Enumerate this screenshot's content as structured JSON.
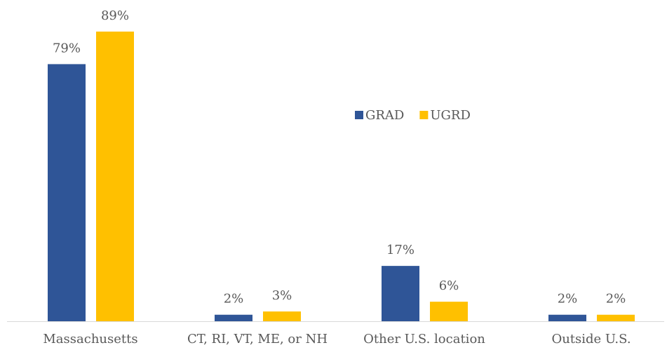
{
  "chart_data": {
    "type": "bar",
    "categories": [
      "Massachusetts",
      "CT, RI, VT, ME, or NH",
      "Other U.S. location",
      "Outside U.S."
    ],
    "series": [
      {
        "name": "GRAD",
        "color": "#2f5597",
        "values": [
          79,
          2,
          17,
          2
        ],
        "value_labels": [
          "79%",
          "2%",
          "17%",
          "2%"
        ]
      },
      {
        "name": "UGRD",
        "color": "#ffc000",
        "values": [
          89,
          3,
          6,
          2
        ],
        "value_labels": [
          "89%",
          "3%",
          "6%",
          "2%"
        ]
      }
    ],
    "ylim": [
      0,
      100
    ],
    "legend": "top-center"
  }
}
